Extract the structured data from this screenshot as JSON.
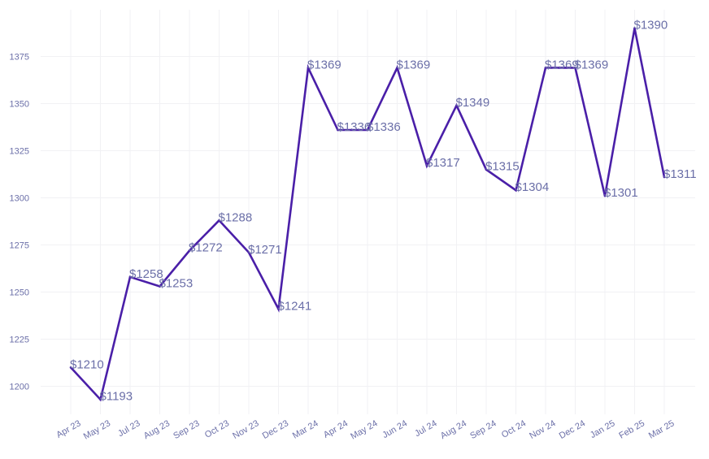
{
  "chart_data": {
    "type": "line",
    "categories": [
      "Apr 23",
      "May 23",
      "Jul 23",
      "Aug 23",
      "Sep 23",
      "Oct 23",
      "Nov 23",
      "Dec 23",
      "Mar 24",
      "Apr 24",
      "May 24",
      "Jun 24",
      "Jul 24",
      "Aug 24",
      "Sep 24",
      "Oct 24",
      "Nov 24",
      "Dec 24",
      "Jan 25",
      "Feb 25",
      "Mar 25"
    ],
    "series": [
      {
        "values": [
          1210,
          1193,
          1258,
          1253,
          1272,
          1288,
          1271,
          1241,
          1369,
          1336,
          1336,
          1369,
          1317,
          1349,
          1315,
          1304,
          1369,
          1369,
          1301,
          1390,
          1311
        ]
      }
    ],
    "data_labels": [
      "$1210",
      "$1193",
      "$1258",
      "$1253",
      "$1272",
      "$1288",
      "$1271",
      "$1241",
      "$1369",
      "$1336",
      "$1336",
      "$1369",
      "$1317",
      "$1349",
      "$1315",
      "$1304",
      "$1369",
      "$1369",
      "$1301",
      "$1390",
      "$1311"
    ],
    "yticks": [
      1200,
      1225,
      1250,
      1275,
      1300,
      1325,
      1350,
      1375
    ],
    "ylim": [
      1185,
      1395
    ],
    "grid": true,
    "legend": "none",
    "colors": {
      "line": "#4a1fa8",
      "labels": "#6b6fa8",
      "grid": "#f1f1f4"
    }
  }
}
